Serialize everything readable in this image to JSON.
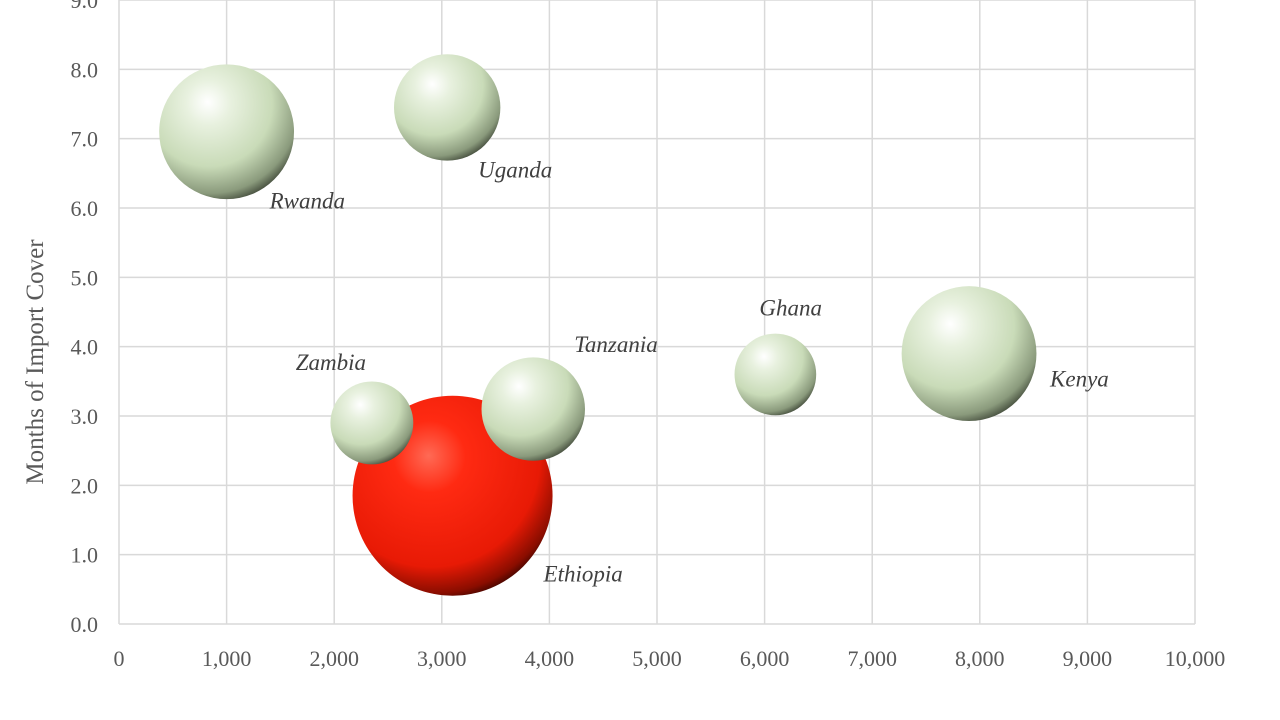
{
  "chart_data": {
    "type": "bubble",
    "title": "",
    "xlabel": "",
    "ylabel": "Months of Import Cover",
    "xlim": [
      0,
      10000
    ],
    "ylim": [
      0,
      9
    ],
    "x_ticks": [
      "0",
      "1,000",
      "2,000",
      "3,000",
      "4,000",
      "5,000",
      "6,000",
      "7,000",
      "8,000",
      "9,000",
      "10,000"
    ],
    "y_ticks": [
      "0.0",
      "1.0",
      "2.0",
      "3.0",
      "4.0",
      "5.0",
      "6.0",
      "7.0",
      "8.0",
      "9.0"
    ],
    "grid": true,
    "points": [
      {
        "label": "Rwanda",
        "x": 1000,
        "y": 7.1,
        "size": 9.0,
        "color": "#cfe0bf"
      },
      {
        "label": "Uganda",
        "x": 3050,
        "y": 7.45,
        "size": 5.6,
        "color": "#cfe0bf"
      },
      {
        "label": "Zambia",
        "x": 2350,
        "y": 2.9,
        "size": 3.4,
        "color": "#cfe0bf"
      },
      {
        "label": "Ethiopia",
        "x": 3100,
        "y": 1.85,
        "size": 19.8,
        "color": "#ff2a12"
      },
      {
        "label": "Tanzania",
        "x": 3850,
        "y": 3.1,
        "size": 5.3,
        "color": "#cfe0bf"
      },
      {
        "label": "Ghana",
        "x": 6100,
        "y": 3.6,
        "size": 3.3,
        "color": "#cfe0bf"
      },
      {
        "label": "Kenya",
        "x": 7900,
        "y": 3.9,
        "size": 9.0,
        "color": "#cfe0bf"
      }
    ]
  }
}
